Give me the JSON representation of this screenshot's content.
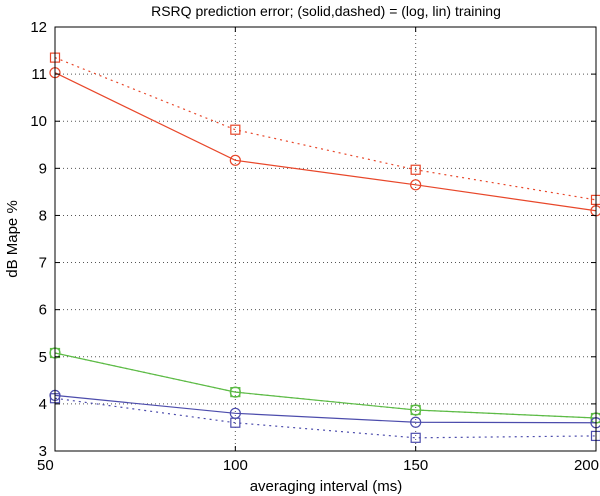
{
  "chart_data": {
    "type": "line",
    "title": "RSRQ prediction error; (solid,dashed) = (log, lin) training",
    "xlabel": "averaging interval (ms)",
    "ylabel": "dB Mape %",
    "x": [
      50,
      100,
      150,
      200
    ],
    "xlim": [
      50,
      200
    ],
    "ylim": [
      3,
      12
    ],
    "xticks": [
      "50",
      "100",
      "150",
      "200"
    ],
    "yticks": [
      "3",
      "4",
      "5",
      "6",
      "7",
      "8",
      "9",
      "10",
      "11",
      "12"
    ],
    "grid": true,
    "series": [
      {
        "name": "red log",
        "color": "#e8472a",
        "style": "solid",
        "marker": "circle",
        "values": [
          11.03,
          9.17,
          8.65,
          8.1
        ]
      },
      {
        "name": "red lin",
        "color": "#e8472a",
        "style": "dashed",
        "marker": "square",
        "values": [
          11.35,
          9.82,
          8.97,
          8.33
        ]
      },
      {
        "name": "green log",
        "color": "#5dbb46",
        "style": "solid",
        "marker": "circle",
        "values": [
          5.08,
          4.25,
          3.87,
          3.7
        ]
      },
      {
        "name": "green lin",
        "color": "#5dbb46",
        "style": "dashed",
        "marker": "square",
        "values": [
          5.08,
          4.25,
          3.87,
          3.7
        ]
      },
      {
        "name": "blue log",
        "color": "#4c4cac",
        "style": "solid",
        "marker": "circle",
        "values": [
          4.18,
          3.8,
          3.61,
          3.6
        ]
      },
      {
        "name": "blue lin",
        "color": "#4c4cac",
        "style": "dashed",
        "marker": "square",
        "values": [
          4.12,
          3.6,
          3.28,
          3.32
        ]
      }
    ]
  }
}
